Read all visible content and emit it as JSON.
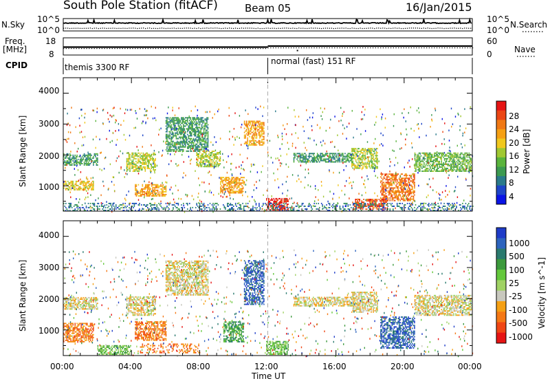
{
  "header": {
    "station": "South Pole Station (fitACF)",
    "beam": "Beam 05",
    "date": "16/Jan/2015"
  },
  "side_labels": {
    "nsky": "N.Sky",
    "nsearch": "N.Search",
    "freq_line1": "Freq.",
    "freq_line2": "[MHz]",
    "nave": "Nave",
    "cpid": "CPID"
  },
  "noise_panel": {
    "left_ticks": [
      "10^5",
      "10^0"
    ],
    "right_ticks": [
      "10^5",
      "10^0"
    ]
  },
  "freq_panel": {
    "left_ticks": [
      "18",
      "8"
    ],
    "right_ticks": [
      "60",
      "0"
    ]
  },
  "cpid_panel": {
    "segments": [
      "themis 3300 RF",
      "normal (fast) 151 RF"
    ],
    "switch_time": "12:00"
  },
  "chart_data": [
    {
      "type": "heatmap",
      "panel": "power",
      "ylabel": "Slant Range [km]",
      "ylim": [
        180,
        4500
      ],
      "yticks": [
        1000,
        2000,
        3000,
        4000
      ],
      "xlim": [
        0,
        24
      ],
      "xticks": [
        "00:00",
        "04:00",
        "08:00",
        "12:00",
        "16:00",
        "20:00",
        "00:00"
      ],
      "colorbar": {
        "label": "Power [dB]",
        "ticks": [
          "4",
          "8",
          "12",
          "16",
          "20",
          "24",
          "28"
        ],
        "colors": [
          "#0a14e6",
          "#1e46c8",
          "#2a7a8a",
          "#3c9a50",
          "#5ab43c",
          "#a0c832",
          "#f0c81e",
          "#f5a014",
          "#f07814",
          "#eb4614",
          "#e61414"
        ]
      },
      "echo_regions": [
        {
          "t": [
            0.0,
            2.0
          ],
          "r": [
            1650,
            2050
          ],
          "level": 3
        },
        {
          "t": [
            0.0,
            1.8
          ],
          "r": [
            850,
            1150
          ],
          "level": 6
        },
        {
          "t": [
            3.7,
            5.4
          ],
          "r": [
            1450,
            2050
          ],
          "level": 5
        },
        {
          "t": [
            4.2,
            6.0
          ],
          "r": [
            650,
            1050
          ],
          "level": 7
        },
        {
          "t": [
            6.0,
            8.5
          ],
          "r": [
            2100,
            3200
          ],
          "level": 3
        },
        {
          "t": [
            7.8,
            9.2
          ],
          "r": [
            1600,
            2100
          ],
          "level": 5
        },
        {
          "t": [
            9.2,
            10.6
          ],
          "r": [
            750,
            1250
          ],
          "level": 7
        },
        {
          "t": [
            10.6,
            11.8
          ],
          "r": [
            2300,
            3100
          ],
          "level": 7
        },
        {
          "t": [
            11.9,
            13.2
          ],
          "r": [
            200,
            600
          ],
          "level": 10
        },
        {
          "t": [
            13.5,
            17.0
          ],
          "r": [
            1750,
            2050
          ],
          "level": 3
        },
        {
          "t": [
            16.9,
            18.4
          ],
          "r": [
            1550,
            2200
          ],
          "level": 5
        },
        {
          "t": [
            18.6,
            20.6
          ],
          "r": [
            500,
            1400
          ],
          "level": 8
        },
        {
          "t": [
            20.6,
            23.9
          ],
          "r": [
            1450,
            2050
          ],
          "level": 4
        },
        {
          "t": [
            17.0,
            19.0
          ],
          "r": [
            220,
            550
          ],
          "level": 9
        },
        {
          "t": [
            0.0,
            24.0
          ],
          "r": [
            180,
            450
          ],
          "level": 2
        }
      ]
    },
    {
      "type": "heatmap",
      "panel": "velocity",
      "ylabel": "Slant Range [km]",
      "xlabel": "Time UT",
      "ylim": [
        180,
        4500
      ],
      "yticks": [
        1000,
        2000,
        3000,
        4000
      ],
      "xlim": [
        0,
        24
      ],
      "xticks": [
        "00:00",
        "04:00",
        "08:00",
        "12:00",
        "16:00",
        "20:00",
        "00:00"
      ],
      "colorbar": {
        "label": "Velocity [m s^-1]",
        "ticks": [
          "1000",
          "500",
          "100",
          "25",
          "-25",
          "-100",
          "-500",
          "-1000"
        ],
        "colors": [
          "#1e3cc8",
          "#2d64be",
          "#2a7a6e",
          "#3c9a3c",
          "#64c83c",
          "#a0d264",
          "#c8c8be",
          "#f5a014",
          "#f57814",
          "#f04614",
          "#e61414"
        ]
      },
      "echo_regions": [
        {
          "t": [
            0.0,
            2.0
          ],
          "r": [
            1650,
            2050
          ],
          "level": 6
        },
        {
          "t": [
            0.0,
            1.8
          ],
          "r": [
            600,
            1200
          ],
          "level": 8
        },
        {
          "t": [
            3.7,
            5.4
          ],
          "r": [
            1450,
            2050
          ],
          "level": 6
        },
        {
          "t": [
            4.2,
            6.0
          ],
          "r": [
            650,
            1250
          ],
          "level": 8
        },
        {
          "t": [
            6.0,
            8.5
          ],
          "r": [
            2100,
            3200
          ],
          "level": 6
        },
        {
          "t": [
            9.4,
            10.6
          ],
          "r": [
            600,
            1250
          ],
          "level": 3
        },
        {
          "t": [
            10.6,
            11.8
          ],
          "r": [
            1800,
            3200
          ],
          "level": 1
        },
        {
          "t": [
            11.9,
            13.2
          ],
          "r": [
            200,
            650
          ],
          "level": 4
        },
        {
          "t": [
            13.5,
            17.0
          ],
          "r": [
            1750,
            2050
          ],
          "level": 6
        },
        {
          "t": [
            16.9,
            18.4
          ],
          "r": [
            1550,
            2200
          ],
          "level": 6
        },
        {
          "t": [
            18.6,
            20.6
          ],
          "r": [
            400,
            1400
          ],
          "level": 1
        },
        {
          "t": [
            20.6,
            23.9
          ],
          "r": [
            1450,
            2100
          ],
          "level": 6
        },
        {
          "t": [
            2.0,
            4.0
          ],
          "r": [
            200,
            500
          ],
          "level": 4
        },
        {
          "t": [
            4.5,
            8.0
          ],
          "r": [
            250,
            550
          ],
          "level": 8
        }
      ]
    }
  ]
}
